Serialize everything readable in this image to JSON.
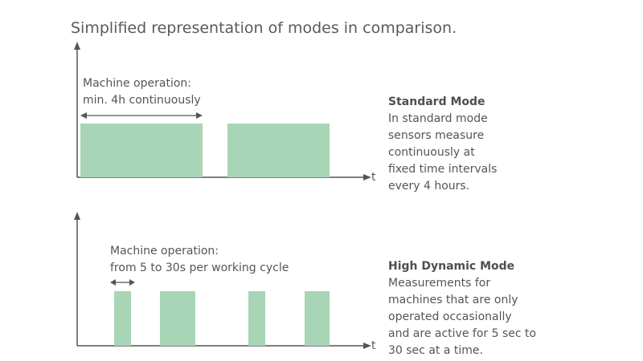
{
  "title": "Simplified representation of modes in comparison.",
  "colors": {
    "bar": "#a7d5b5",
    "axis": "#555555"
  },
  "standard_mode": {
    "op_label_line1": "Machine operation:",
    "op_label_line2": "min. 4h continuously",
    "axis_label": "t",
    "heading": "Standard Mode",
    "description_lines": [
      "In standard mode",
      "sensors measure",
      "continuously at",
      "fixed time intervals",
      "every 4 hours."
    ]
  },
  "high_dynamic_mode": {
    "op_label_line1": "Machine operation:",
    "op_label_line2": "from 5 to 30s per working cycle",
    "axis_label": "t",
    "heading": "High Dynamic Mode",
    "description_lines": [
      "Measurements for",
      "machines that are only",
      "operated occasionally",
      "and are active for 5 sec to",
      "30 sec at a time."
    ]
  }
}
